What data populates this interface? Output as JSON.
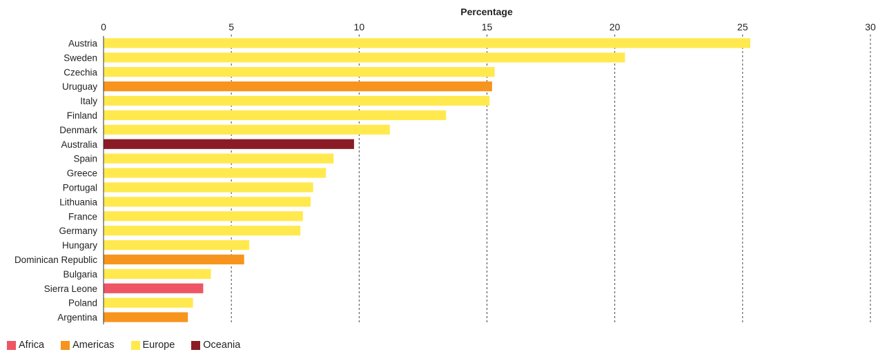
{
  "chart_data": {
    "type": "bar",
    "orientation": "horizontal",
    "xlabel": "Percentage",
    "xlim": [
      0,
      30
    ],
    "xticks": [
      0,
      5,
      10,
      15,
      20,
      25,
      30
    ],
    "grid": "vertical dashed",
    "legend_position": "bottom-left",
    "categories": [
      "Austria",
      "Sweden",
      "Czechia",
      "Uruguay",
      "Italy",
      "Finland",
      "Denmark",
      "Australia",
      "Spain",
      "Greece",
      "Portugal",
      "Lithuania",
      "France",
      "Germany",
      "Hungary",
      "Dominican Republic",
      "Bulgaria",
      "Sierra Leone",
      "Poland",
      "Argentina"
    ],
    "values": [
      25.3,
      20.4,
      15.3,
      15.2,
      15.1,
      13.4,
      11.2,
      9.8,
      9.0,
      8.7,
      8.2,
      8.1,
      7.8,
      7.7,
      5.7,
      5.5,
      4.2,
      3.9,
      3.5,
      3.3
    ],
    "regions": [
      "Europe",
      "Europe",
      "Europe",
      "Americas",
      "Europe",
      "Europe",
      "Europe",
      "Oceania",
      "Europe",
      "Europe",
      "Europe",
      "Europe",
      "Europe",
      "Europe",
      "Europe",
      "Americas",
      "Europe",
      "Africa",
      "Europe",
      "Americas"
    ],
    "legend": [
      {
        "name": "Africa",
        "color": "#ee5565"
      },
      {
        "name": "Americas",
        "color": "#f7941d"
      },
      {
        "name": "Europe",
        "color": "#ffe94f"
      },
      {
        "name": "Oceania",
        "color": "#8b1c25"
      }
    ]
  }
}
